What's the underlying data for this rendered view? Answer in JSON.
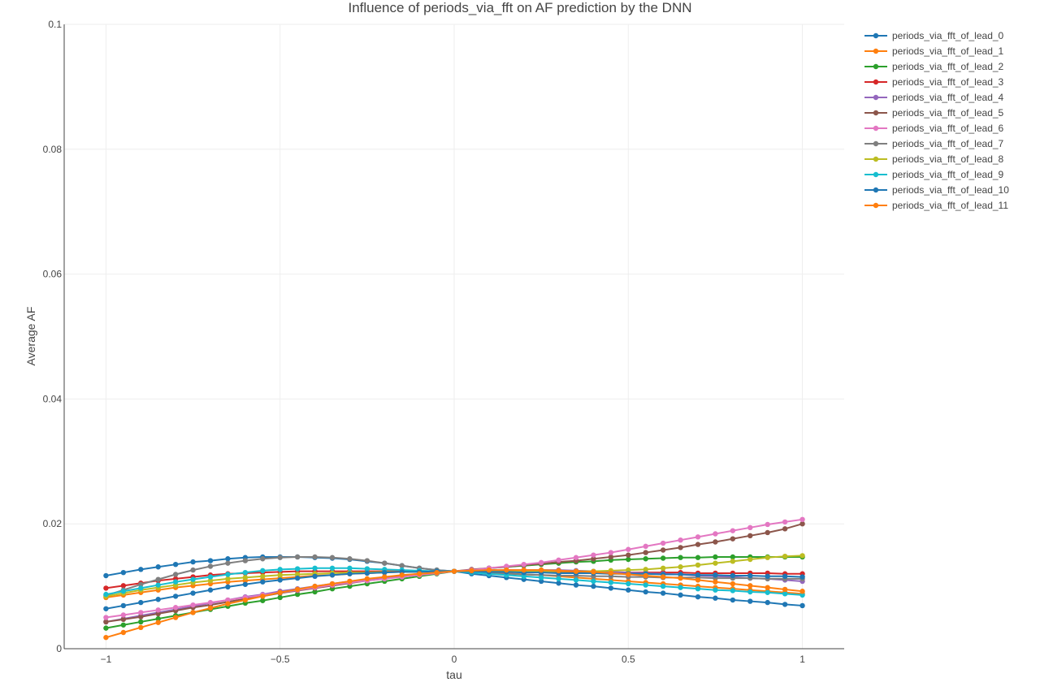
{
  "chart_data": {
    "type": "line",
    "title": "Influence of periods_via_fft on AF prediction by the DNN",
    "xlabel": "tau",
    "ylabel": "Average AF",
    "xlim": [
      -1.12,
      1.12
    ],
    "ylim": [
      0,
      0.1
    ],
    "x_ticks": [
      -1,
      -0.5,
      0,
      0.5,
      1
    ],
    "x_tick_labels": [
      "−1",
      "−0.5",
      "0",
      "0.5",
      "1"
    ],
    "y_ticks": [
      0,
      0.02,
      0.04,
      0.06,
      0.08,
      0.1
    ],
    "y_tick_labels": [
      "0",
      "0.02",
      "0.04",
      "0.06",
      "0.08",
      "0.1"
    ],
    "grid": true,
    "legend_position": "top-right",
    "x": [
      -1.0,
      -0.95,
      -0.9,
      -0.85,
      -0.8,
      -0.75,
      -0.7,
      -0.65,
      -0.6,
      -0.55,
      -0.5,
      -0.45,
      -0.4,
      -0.35,
      -0.3,
      -0.25,
      -0.2,
      -0.15,
      -0.1,
      -0.05,
      0.0,
      0.05,
      0.1,
      0.15,
      0.2,
      0.25,
      0.3,
      0.35,
      0.4,
      0.45,
      0.5,
      0.55,
      0.6,
      0.65,
      0.7,
      0.75,
      0.8,
      0.85,
      0.9,
      0.95,
      1.0
    ],
    "series": [
      {
        "name": "periods_via_fft_of_lead_0",
        "color": "#1f77b4",
        "values": [
          0.0117,
          0.0122,
          0.0127,
          0.0131,
          0.0135,
          0.0139,
          0.0141,
          0.0144,
          0.0146,
          0.0147,
          0.0147,
          0.0147,
          0.0146,
          0.0145,
          0.0143,
          0.014,
          0.0137,
          0.0133,
          0.0129,
          0.0126,
          0.0124,
          0.012,
          0.0117,
          0.0114,
          0.0111,
          0.0108,
          0.0105,
          0.0102,
          0.01,
          0.0097,
          0.0094,
          0.0091,
          0.0089,
          0.0086,
          0.0083,
          0.0081,
          0.0078,
          0.0076,
          0.0074,
          0.0071,
          0.0069
        ]
      },
      {
        "name": "periods_via_fft_of_lead_1",
        "color": "#ff7f0e",
        "values": [
          0.0082,
          0.0086,
          0.009,
          0.0094,
          0.0098,
          0.0101,
          0.0104,
          0.0107,
          0.0109,
          0.0111,
          0.0113,
          0.0115,
          0.0117,
          0.0118,
          0.012,
          0.0121,
          0.0122,
          0.0123,
          0.0124,
          0.0124,
          0.0124,
          0.0123,
          0.0122,
          0.0121,
          0.0119,
          0.0118,
          0.0116,
          0.0114,
          0.0112,
          0.011,
          0.0108,
          0.0106,
          0.0104,
          0.0102,
          0.01,
          0.0098,
          0.0096,
          0.0094,
          0.0092,
          0.009,
          0.0088
        ]
      },
      {
        "name": "periods_via_fft_of_lead_2",
        "color": "#2ca02c",
        "values": [
          0.0033,
          0.0038,
          0.0043,
          0.0048,
          0.0053,
          0.0058,
          0.0063,
          0.0068,
          0.0073,
          0.0077,
          0.0082,
          0.0087,
          0.0091,
          0.0096,
          0.01,
          0.0104,
          0.0108,
          0.0112,
          0.0116,
          0.012,
          0.0124,
          0.0126,
          0.0129,
          0.0131,
          0.0133,
          0.0135,
          0.0137,
          0.0139,
          0.014,
          0.0142,
          0.0143,
          0.0144,
          0.0145,
          0.0146,
          0.0146,
          0.0147,
          0.0147,
          0.0147,
          0.0147,
          0.0147,
          0.0147
        ]
      },
      {
        "name": "periods_via_fft_of_lead_3",
        "color": "#d62728",
        "values": [
          0.0097,
          0.0101,
          0.0105,
          0.0109,
          0.0112,
          0.0115,
          0.0118,
          0.012,
          0.0121,
          0.0122,
          0.0123,
          0.0124,
          0.0124,
          0.0124,
          0.0124,
          0.0124,
          0.0124,
          0.0124,
          0.0124,
          0.0124,
          0.0124,
          0.0124,
          0.0124,
          0.0123,
          0.0123,
          0.0123,
          0.0123,
          0.0123,
          0.0122,
          0.0122,
          0.0122,
          0.0122,
          0.0122,
          0.0122,
          0.0121,
          0.0121,
          0.0121,
          0.0121,
          0.0121,
          0.012,
          0.012
        ]
      },
      {
        "name": "periods_via_fft_of_lead_4",
        "color": "#9467bd",
        "values": [
          0.0043,
          0.0048,
          0.0053,
          0.0058,
          0.0063,
          0.0068,
          0.0073,
          0.0078,
          0.0083,
          0.0087,
          0.0092,
          0.0096,
          0.01,
          0.0104,
          0.0108,
          0.0111,
          0.0114,
          0.0117,
          0.012,
          0.0122,
          0.0124,
          0.0125,
          0.0126,
          0.0126,
          0.0126,
          0.0126,
          0.0126,
          0.0125,
          0.0124,
          0.0123,
          0.0122,
          0.0121,
          0.012,
          0.0119,
          0.0117,
          0.0116,
          0.0115,
          0.0113,
          0.0112,
          0.011,
          0.0108
        ]
      },
      {
        "name": "periods_via_fft_of_lead_5",
        "color": "#8c564b",
        "values": [
          0.0043,
          0.0047,
          0.0051,
          0.0056,
          0.0061,
          0.0066,
          0.007,
          0.0075,
          0.008,
          0.0084,
          0.0089,
          0.0093,
          0.0097,
          0.0101,
          0.0105,
          0.0109,
          0.0112,
          0.0116,
          0.0119,
          0.0122,
          0.0124,
          0.0127,
          0.0129,
          0.0131,
          0.0134,
          0.0136,
          0.0139,
          0.0141,
          0.0144,
          0.0147,
          0.015,
          0.0154,
          0.0158,
          0.0162,
          0.0167,
          0.0171,
          0.0176,
          0.0181,
          0.0186,
          0.0192,
          0.02
        ]
      },
      {
        "name": "periods_via_fft_of_lead_6",
        "color": "#e377c2",
        "values": [
          0.005,
          0.0054,
          0.0058,
          0.0062,
          0.0066,
          0.007,
          0.0074,
          0.0078,
          0.0082,
          0.0086,
          0.009,
          0.0094,
          0.0098,
          0.0102,
          0.0106,
          0.0109,
          0.0112,
          0.0115,
          0.0118,
          0.0121,
          0.0124,
          0.0126,
          0.0129,
          0.0132,
          0.0135,
          0.0138,
          0.0142,
          0.0146,
          0.015,
          0.0154,
          0.0159,
          0.0164,
          0.0169,
          0.0174,
          0.0179,
          0.0184,
          0.0189,
          0.0194,
          0.0199,
          0.0203,
          0.0207
        ]
      },
      {
        "name": "periods_via_fft_of_lead_7",
        "color": "#7f7f7f",
        "values": [
          0.0085,
          0.0094,
          0.0103,
          0.0111,
          0.0119,
          0.0126,
          0.0132,
          0.0137,
          0.0141,
          0.0144,
          0.0146,
          0.0147,
          0.0147,
          0.0146,
          0.0144,
          0.0141,
          0.0137,
          0.0133,
          0.0129,
          0.0126,
          0.0124,
          0.0122,
          0.0121,
          0.012,
          0.0119,
          0.0118,
          0.0117,
          0.0117,
          0.0116,
          0.0116,
          0.0115,
          0.0115,
          0.0114,
          0.0114,
          0.0114,
          0.0113,
          0.0113,
          0.0113,
          0.0112,
          0.0112,
          0.0112
        ]
      },
      {
        "name": "periods_via_fft_of_lead_8",
        "color": "#bcbd22",
        "values": [
          0.0084,
          0.0089,
          0.0094,
          0.0098,
          0.0102,
          0.0106,
          0.0109,
          0.0112,
          0.0114,
          0.0116,
          0.0118,
          0.0119,
          0.012,
          0.0121,
          0.0122,
          0.0122,
          0.0123,
          0.0123,
          0.0123,
          0.0124,
          0.0124,
          0.0124,
          0.0124,
          0.0124,
          0.0124,
          0.0124,
          0.0124,
          0.0124,
          0.0124,
          0.0125,
          0.0126,
          0.0127,
          0.0129,
          0.0131,
          0.0134,
          0.0137,
          0.014,
          0.0143,
          0.0146,
          0.0148,
          0.0149
        ]
      },
      {
        "name": "periods_via_fft_of_lead_9",
        "color": "#17becf",
        "values": [
          0.0087,
          0.0092,
          0.0097,
          0.0102,
          0.0107,
          0.0111,
          0.0115,
          0.0119,
          0.0122,
          0.0125,
          0.0127,
          0.0128,
          0.0129,
          0.0129,
          0.0129,
          0.0128,
          0.0127,
          0.0126,
          0.0125,
          0.0124,
          0.0124,
          0.0122,
          0.012,
          0.0118,
          0.0116,
          0.0114,
          0.0112,
          0.011,
          0.0108,
          0.0106,
          0.0104,
          0.0102,
          0.01,
          0.0098,
          0.0096,
          0.0094,
          0.0093,
          0.0091,
          0.009,
          0.0088,
          0.0086
        ]
      },
      {
        "name": "periods_via_fft_of_lead_10",
        "color": "#1f77b4",
        "values": [
          0.0064,
          0.0069,
          0.0074,
          0.0079,
          0.0084,
          0.0089,
          0.0094,
          0.0099,
          0.0103,
          0.0107,
          0.011,
          0.0113,
          0.0116,
          0.0118,
          0.012,
          0.0121,
          0.0122,
          0.0123,
          0.0123,
          0.0124,
          0.0124,
          0.0124,
          0.0123,
          0.0123,
          0.0122,
          0.0122,
          0.0121,
          0.0121,
          0.0121,
          0.012,
          0.012,
          0.012,
          0.0119,
          0.0119,
          0.0118,
          0.0118,
          0.0117,
          0.0117,
          0.0116,
          0.0116,
          0.0115
        ]
      },
      {
        "name": "periods_via_fft_of_lead_11",
        "color": "#ff7f0e",
        "values": [
          0.0018,
          0.0026,
          0.0034,
          0.0042,
          0.005,
          0.0058,
          0.0065,
          0.0072,
          0.0078,
          0.0084,
          0.009,
          0.0095,
          0.01,
          0.0104,
          0.0108,
          0.0112,
          0.0115,
          0.0118,
          0.012,
          0.0122,
          0.0124,
          0.0125,
          0.0126,
          0.0126,
          0.0126,
          0.0126,
          0.0125,
          0.0124,
          0.0123,
          0.0121,
          0.0119,
          0.0117,
          0.0115,
          0.0113,
          0.011,
          0.0107,
          0.0104,
          0.0101,
          0.0098,
          0.0095,
          0.0092
        ]
      }
    ]
  }
}
